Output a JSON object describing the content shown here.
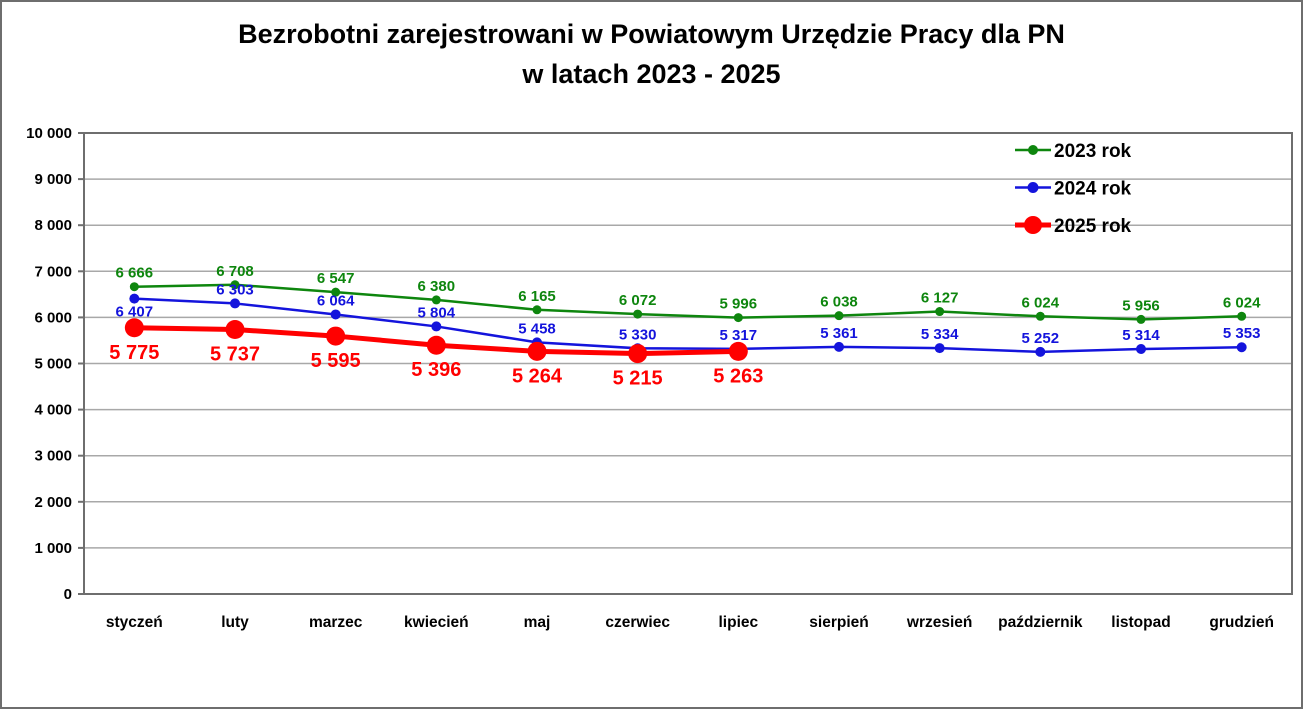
{
  "title": {
    "line1": "Bezrobotni zarejestrowani w Powiatowym Urzędzie Pracy dla PN",
    "line2": "w latach 2023 - 2025"
  },
  "chart_data": {
    "type": "line",
    "categories": [
      "styczeń",
      "luty",
      "marzec",
      "kwiecień",
      "maj",
      "czerwiec",
      "lipiec",
      "sierpień",
      "wrzesień",
      "październik",
      "listopad",
      "grudzień"
    ],
    "series": [
      {
        "name": "2023 rok",
        "color": "#0e860e",
        "values": [
          6666,
          6708,
          6547,
          6380,
          6165,
          6072,
          5996,
          6038,
          6127,
          6024,
          5956,
          6024
        ],
        "line_width": 2.5,
        "marker_radius": 4.5,
        "legend_marker_radius": 5,
        "label_position": "above",
        "label_font_size": 15
      },
      {
        "name": "2024 rok",
        "color": "#1414dc",
        "values": [
          6407,
          6303,
          6064,
          5804,
          5458,
          5330,
          5317,
          5361,
          5334,
          5252,
          5314,
          5353
        ],
        "line_width": 2.5,
        "marker_radius": 5,
        "legend_marker_radius": 5.5,
        "label_position": "above",
        "first_label_below": true,
        "label_font_size": 15
      },
      {
        "name": "2025 rok",
        "color": "#ff0000",
        "values": [
          5775,
          5737,
          5595,
          5396,
          5264,
          5215,
          5263
        ],
        "line_width": 5,
        "marker_radius": 9.5,
        "legend_marker_radius": 9,
        "label_position": "below",
        "label_font_size": 20
      }
    ],
    "ylim": [
      0,
      10000
    ],
    "ytick_step": 1000,
    "ytick_labels": [
      "0",
      "1 000",
      "2 000",
      "3 000",
      "4 000",
      "5 000",
      "6 000",
      "7 000",
      "8 000",
      "9 000",
      "10 000"
    ],
    "grid": true,
    "legend_position": "top-right",
    "number_format": "space-thousands",
    "axis_text_color": "#000000",
    "grid_color": "#a8a8a8",
    "frame_color": "#6e6e6e"
  }
}
